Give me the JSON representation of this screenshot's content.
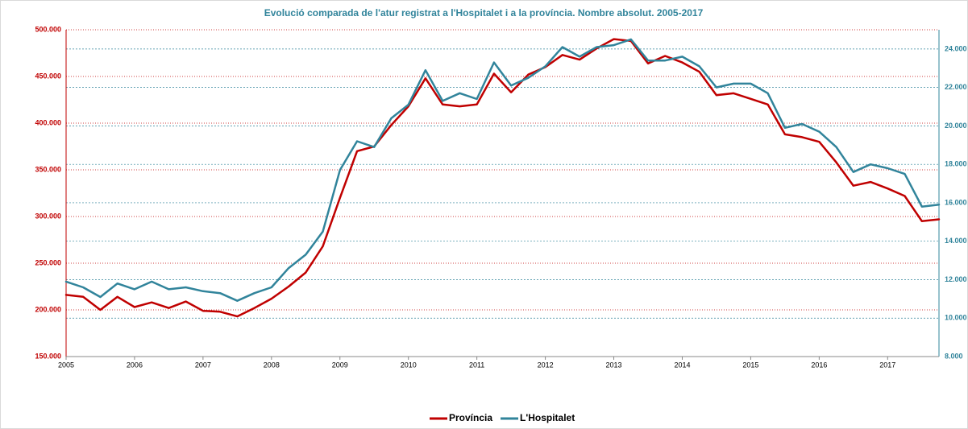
{
  "chart_data": {
    "type": "line",
    "title": "Evolució comparada de l'atur registrat a l'Hospitalet  i a la província. Nombre absolut. 2005-2017",
    "x": [
      2005,
      2005.25,
      2005.5,
      2005.75,
      2006,
      2006.25,
      2006.5,
      2006.75,
      2007,
      2007.25,
      2007.5,
      2007.75,
      2008,
      2008.25,
      2008.5,
      2008.75,
      2009,
      2009.25,
      2009.5,
      2009.75,
      2010,
      2010.25,
      2010.5,
      2010.75,
      2011,
      2011.25,
      2011.5,
      2011.75,
      2012,
      2012.25,
      2012.5,
      2012.75,
      2013,
      2013.25,
      2013.5,
      2013.75,
      2014,
      2014.25,
      2014.5,
      2014.75,
      2015,
      2015.25,
      2015.5,
      2015.75,
      2016,
      2016.25,
      2016.5,
      2016.75,
      2017,
      2017.25,
      2017.5,
      2017.75
    ],
    "xlim": [
      2005,
      2017.75
    ],
    "xticks": [
      2005,
      2006,
      2007,
      2008,
      2009,
      2010,
      2011,
      2012,
      2013,
      2014,
      2015,
      2016,
      2017
    ],
    "ylim": [
      150000,
      500000
    ],
    "yticks": [
      {
        "value": 150000,
        "label": "150.000"
      },
      {
        "value": 200000,
        "label": "200.000"
      },
      {
        "value": 250000,
        "label": "250.000"
      },
      {
        "value": 300000,
        "label": "300.000"
      },
      {
        "value": 350000,
        "label": "350.000"
      },
      {
        "value": 400000,
        "label": "400.000"
      },
      {
        "value": 450000,
        "label": "450.000"
      },
      {
        "value": 500000,
        "label": "500.000"
      }
    ],
    "y2lim": [
      8000,
      25000
    ],
    "y2ticks": [
      {
        "value": 8000,
        "label": "8.000"
      },
      {
        "value": 10000,
        "label": "10.000"
      },
      {
        "value": 12000,
        "label": "12.000"
      },
      {
        "value": 14000,
        "label": "14.000"
      },
      {
        "value": 16000,
        "label": "16.000"
      },
      {
        "value": 18000,
        "label": "18.000"
      },
      {
        "value": 20000,
        "label": "20.000"
      },
      {
        "value": 22000,
        "label": "22.000"
      },
      {
        "value": 24000,
        "label": "24.000"
      }
    ],
    "grid": true,
    "legend": "bottom",
    "series": [
      {
        "name": "Província",
        "color": "#c00000",
        "values": [
          216000,
          214000,
          200000,
          214000,
          203000,
          208000,
          202000,
          209000,
          199000,
          198000,
          193000,
          202000,
          212000,
          225000,
          240000,
          268000,
          320000,
          370000,
          375000,
          398000,
          418000,
          448000,
          420000,
          418000,
          420000,
          453000,
          433000,
          452000,
          460000,
          473000,
          468000,
          480000,
          490000,
          488000,
          464000,
          472000,
          465000,
          455000,
          430000,
          432000,
          426000,
          420000,
          388000,
          385000,
          380000,
          358000,
          333000,
          337000,
          330000,
          322000,
          295000,
          297000
        ]
      },
      {
        "name": "L'Hospitalet",
        "color": "#31849b",
        "axis": "y2",
        "values": [
          11900,
          11600,
          11100,
          11800,
          11500,
          11900,
          11500,
          11600,
          11400,
          11300,
          10900,
          11300,
          11600,
          12600,
          13300,
          14500,
          17700,
          19200,
          18900,
          20400,
          21100,
          22900,
          21300,
          21700,
          21400,
          23300,
          22100,
          22500,
          23100,
          24100,
          23600,
          24100,
          24200,
          24500,
          23400,
          23400,
          23600,
          23100,
          22000,
          22200,
          22200,
          21700,
          19900,
          20100,
          19700,
          18900,
          17600,
          18000,
          17800,
          17500,
          15800,
          15900
        ]
      }
    ]
  }
}
